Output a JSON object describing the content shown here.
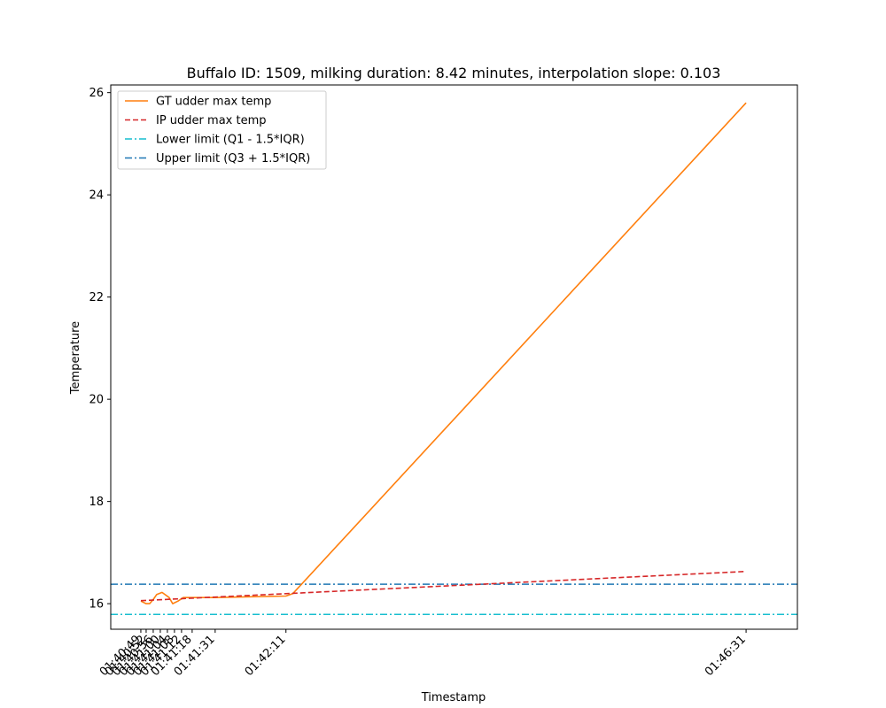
{
  "chart_data": {
    "type": "line",
    "title": "Buffalo ID: 1509, milking duration: 8.42 minutes, interpolation slope: 0.103",
    "xlabel": "Timestamp",
    "ylabel": "Temperature",
    "xlim": [
      6032,
      6420
    ],
    "ylim": [
      15.5,
      26.15
    ],
    "yticks": [
      16,
      18,
      20,
      22,
      24,
      26
    ],
    "xticks": [
      {
        "t": 6049,
        "label": "01:40:49"
      },
      {
        "t": 6052,
        "label": "01:40:52"
      },
      {
        "t": 6056,
        "label": "01:40:56"
      },
      {
        "t": 6060,
        "label": "01:41:00"
      },
      {
        "t": 6064,
        "label": "01:41:04"
      },
      {
        "t": 6068,
        "label": "01:41:08"
      },
      {
        "t": 6072,
        "label": "01:41:12"
      },
      {
        "t": 6078,
        "label": "01:41:18"
      },
      {
        "t": 6091,
        "label": "01:41:31"
      },
      {
        "t": 6131,
        "label": "01:42:11"
      },
      {
        "t": 6391,
        "label": "01:46:31"
      }
    ],
    "series": [
      {
        "name": "GT udder max temp",
        "color": "#ff7f0e",
        "style": "solid",
        "x": [
          6049,
          6052,
          6054,
          6056,
          6058,
          6061,
          6065,
          6067,
          6070,
          6073,
          6077,
          6091,
          6131,
          6135,
          6391
        ],
        "y": [
          16.05,
          16.0,
          16.0,
          16.08,
          16.18,
          16.22,
          16.12,
          16.0,
          16.05,
          16.12,
          16.12,
          16.12,
          16.15,
          16.2,
          25.8
        ]
      },
      {
        "name": "IP udder max temp",
        "color": "#d62728",
        "style": "dashed",
        "x": [
          6049,
          6391
        ],
        "y": [
          16.06,
          16.63
        ]
      }
    ],
    "hlines": [
      {
        "name": "Lower limit (Q1 - 1.5*IQR)",
        "color": "#17becf",
        "y": 15.79
      },
      {
        "name": "Upper limit (Q3 + 1.5*IQR)",
        "color": "#1f77b4",
        "y": 16.38
      }
    ],
    "legend": "upper-left",
    "grid": false
  }
}
